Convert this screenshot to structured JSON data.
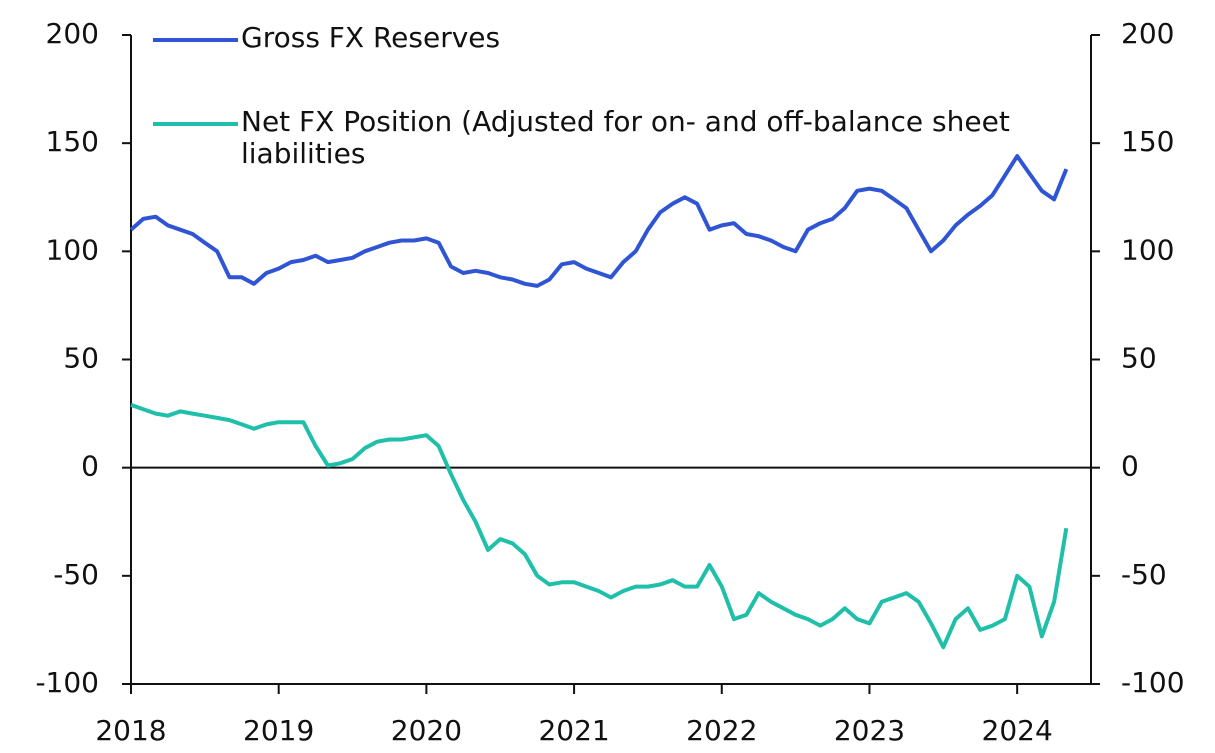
{
  "chart_data": {
    "type": "line",
    "x": [
      2018,
      2018.083,
      2018.167,
      2018.25,
      2018.333,
      2018.417,
      2018.5,
      2018.583,
      2018.667,
      2018.75,
      2018.833,
      2018.917,
      2019,
      2019.083,
      2019.167,
      2019.25,
      2019.333,
      2019.417,
      2019.5,
      2019.583,
      2019.667,
      2019.75,
      2019.833,
      2019.917,
      2020,
      2020.083,
      2020.167,
      2020.25,
      2020.333,
      2020.417,
      2020.5,
      2020.583,
      2020.667,
      2020.75,
      2020.833,
      2020.917,
      2021,
      2021.083,
      2021.167,
      2021.25,
      2021.333,
      2021.417,
      2021.5,
      2021.583,
      2021.667,
      2021.75,
      2021.833,
      2021.917,
      2022,
      2022.083,
      2022.167,
      2022.25,
      2022.333,
      2022.417,
      2022.5,
      2022.583,
      2022.667,
      2022.75,
      2022.833,
      2022.917,
      2023,
      2023.083,
      2023.167,
      2023.25,
      2023.333,
      2023.417,
      2023.5,
      2023.583,
      2023.667,
      2023.75,
      2023.833,
      2023.917,
      2024,
      2024.083,
      2024.167,
      2024.25,
      2024.333
    ],
    "series": [
      {
        "name": "Gross FX Reserves",
        "color": "#2f55d4",
        "values": [
          110,
          115,
          116,
          112,
          110,
          108,
          104,
          100,
          88,
          88,
          85,
          90,
          92,
          95,
          96,
          98,
          95,
          96,
          97,
          100,
          102,
          104,
          105,
          105,
          106,
          104,
          93,
          90,
          91,
          90,
          88,
          87,
          85,
          84,
          87,
          94,
          95,
          92,
          90,
          88,
          95,
          100,
          110,
          118,
          122,
          125,
          122,
          110,
          112,
          113,
          108,
          107,
          105,
          102,
          100,
          110,
          113,
          115,
          120,
          128,
          129,
          128,
          124,
          120,
          110,
          100,
          105,
          112,
          117,
          121,
          126,
          135,
          144,
          136,
          128,
          124,
          138
        ]
      },
      {
        "name": "Net FX Position (Adjusted for on- and off-balance sheet liabilities",
        "color": "#1fbfaa",
        "values": [
          29,
          27,
          25,
          24,
          26,
          25,
          24,
          23,
          22,
          20,
          18,
          20,
          21,
          21,
          21,
          10,
          1,
          2,
          4,
          9,
          12,
          13,
          13,
          14,
          15,
          10,
          -3,
          -15,
          -25,
          -38,
          -33,
          -35,
          -40,
          -50,
          -54,
          -53,
          -53,
          -55,
          -57,
          -60,
          -57,
          -55,
          -55,
          -54,
          -52,
          -55,
          -55,
          -45,
          -55,
          -70,
          -68,
          -58,
          -62,
          -65,
          -68,
          -70,
          -73,
          -70,
          -65,
          -70,
          -72,
          -62,
          -60,
          -58,
          -62,
          -72,
          -83,
          -70,
          -65,
          -75,
          -73,
          -70,
          -50,
          -55,
          -78,
          -62,
          -28
        ]
      }
    ],
    "xlim": [
      2018,
      2024.5
    ],
    "xticks": [
      2018,
      2019,
      2020,
      2021,
      2022,
      2023,
      2024
    ],
    "ylim": [
      -100,
      200
    ],
    "yticks": [
      -100,
      -50,
      0,
      50,
      100,
      150,
      200
    ]
  }
}
